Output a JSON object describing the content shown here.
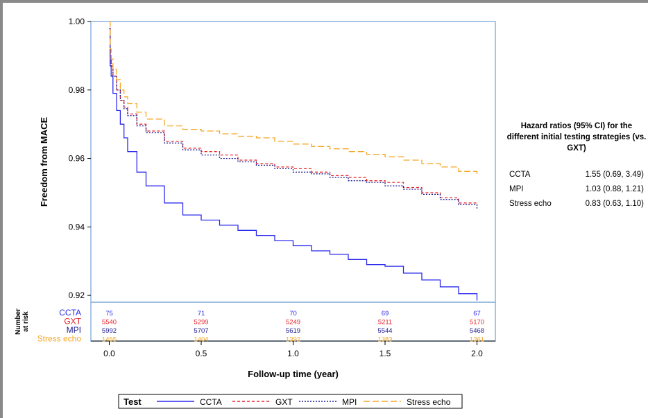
{
  "chart_data": {
    "type": "line",
    "title": "",
    "xlabel": "Follow-up time (year)",
    "ylabel": "Freedom from MACE",
    "xlim": [
      -0.1,
      2.1
    ],
    "ylim": [
      0.918,
      1.0
    ],
    "xticks": [
      0.0,
      0.5,
      1.0,
      1.5,
      2.0
    ],
    "xtick_labels": [
      "0.0",
      "0.5",
      "1.0",
      "1.5",
      "2.0"
    ],
    "yticks": [
      1.0,
      0.98,
      0.96,
      0.94,
      0.92
    ],
    "ytick_labels": [
      "1.00",
      "0.98",
      "0.96",
      "0.94",
      "0.92"
    ],
    "grid": false,
    "legend": {
      "title": "Test",
      "position": "bottom"
    },
    "series": [
      {
        "name": "CCTA",
        "color": "#2a2aee",
        "dash": "solid",
        "x": [
          0,
          0.005,
          0.01,
          0.02,
          0.04,
          0.06,
          0.08,
          0.1,
          0.15,
          0.2,
          0.3,
          0.4,
          0.5,
          0.6,
          0.7,
          0.8,
          0.9,
          1.0,
          1.1,
          1.2,
          1.3,
          1.4,
          1.5,
          1.6,
          1.7,
          1.8,
          1.9,
          2.0
        ],
        "y": [
          0.998,
          0.987,
          0.984,
          0.979,
          0.974,
          0.97,
          0.966,
          0.962,
          0.956,
          0.952,
          0.947,
          0.9435,
          0.942,
          0.9405,
          0.939,
          0.9375,
          0.936,
          0.9345,
          0.933,
          0.932,
          0.9305,
          0.929,
          0.9285,
          0.9265,
          0.9245,
          0.9225,
          0.9205,
          0.9185
        ]
      },
      {
        "name": "GXT",
        "color": "#e8242a",
        "dash": "4,3",
        "x": [
          0,
          0.005,
          0.01,
          0.02,
          0.04,
          0.06,
          0.08,
          0.1,
          0.15,
          0.2,
          0.3,
          0.4,
          0.5,
          0.6,
          0.7,
          0.8,
          0.9,
          1.0,
          1.1,
          1.2,
          1.3,
          1.4,
          1.5,
          1.6,
          1.7,
          1.8,
          1.9,
          2.0
        ],
        "y": [
          0.998,
          0.99,
          0.987,
          0.984,
          0.98,
          0.977,
          0.975,
          0.973,
          0.97,
          0.968,
          0.965,
          0.963,
          0.962,
          0.961,
          0.9595,
          0.9585,
          0.9575,
          0.957,
          0.956,
          0.955,
          0.9545,
          0.9535,
          0.953,
          0.9515,
          0.95,
          0.9485,
          0.947,
          0.9465
        ]
      },
      {
        "name": "MPI",
        "color": "#1c1c90",
        "dash": "2,2",
        "x": [
          0,
          0.005,
          0.01,
          0.02,
          0.04,
          0.06,
          0.08,
          0.1,
          0.15,
          0.2,
          0.3,
          0.4,
          0.5,
          0.6,
          0.7,
          0.8,
          0.9,
          1.0,
          1.1,
          1.2,
          1.3,
          1.4,
          1.5,
          1.6,
          1.7,
          1.8,
          1.9,
          2.0
        ],
        "y": [
          0.998,
          0.99,
          0.987,
          0.984,
          0.98,
          0.977,
          0.9745,
          0.9725,
          0.9695,
          0.9675,
          0.9645,
          0.9625,
          0.961,
          0.96,
          0.959,
          0.958,
          0.957,
          0.956,
          0.9555,
          0.9545,
          0.9535,
          0.953,
          0.952,
          0.951,
          0.9495,
          0.948,
          0.9465,
          0.945
        ]
      },
      {
        "name": "Stress echo",
        "color": "#f5a623",
        "dash": "9,4",
        "x": [
          0,
          0.005,
          0.01,
          0.02,
          0.04,
          0.06,
          0.08,
          0.1,
          0.15,
          0.2,
          0.3,
          0.4,
          0.5,
          0.6,
          0.7,
          0.8,
          0.9,
          1.0,
          1.1,
          1.2,
          1.3,
          1.4,
          1.5,
          1.6,
          1.7,
          1.8,
          1.9,
          2.0
        ],
        "y": [
          1.0,
          0.992,
          0.989,
          0.986,
          0.983,
          0.98,
          0.978,
          0.976,
          0.9735,
          0.9715,
          0.9695,
          0.9685,
          0.968,
          0.9672,
          0.9665,
          0.966,
          0.965,
          0.9642,
          0.9635,
          0.9628,
          0.962,
          0.9612,
          0.9605,
          0.9595,
          0.9585,
          0.9575,
          0.9562,
          0.955
        ]
      }
    ],
    "risk_table": {
      "title": "Number at risk",
      "times": [
        0.0,
        0.5,
        1.0,
        1.5,
        2.0
      ],
      "rows": [
        {
          "name": "CCTA",
          "color": "#2a2aee",
          "values": [
            "75",
            "71",
            "70",
            "69",
            "67"
          ]
        },
        {
          "name": "GXT",
          "color": "#e8242a",
          "values": [
            "5540",
            "5299",
            "5249",
            "5211",
            "5170"
          ]
        },
        {
          "name": "MPI",
          "color": "#1c1c90",
          "values": [
            "5992",
            "5707",
            "5619",
            "5544",
            "5468"
          ]
        },
        {
          "name": "Stress echo",
          "color": "#f5a623",
          "values": [
            "1455",
            "1404",
            "1392",
            "1383",
            "1361"
          ]
        }
      ]
    }
  },
  "hazard_panel": {
    "title": "Hazard ratios (95% CI) for the different initial testing strategies (vs. GXT)",
    "rows": [
      {
        "name": "CCTA",
        "value": "1.55 (0.69, 3.49)"
      },
      {
        "name": "MPI",
        "value": "1.03 (0.88, 1.21)"
      },
      {
        "name": "Stress echo",
        "value": "0.83 (0.63, 1.10)"
      }
    ]
  }
}
